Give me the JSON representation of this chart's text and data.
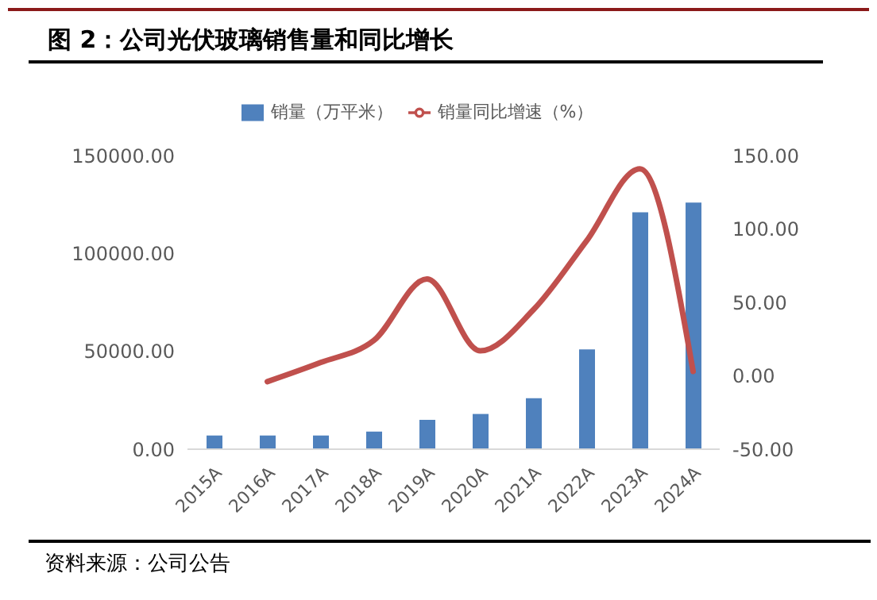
{
  "chart_data": {
    "type": "bar",
    "title": "图 2：公司光伏玻璃销售量和同比增长",
    "annotations": [
      "资料来源：公司公告"
    ],
    "categories": [
      "2015A",
      "2016A",
      "2017A",
      "2018A",
      "2019A",
      "2020A",
      "2021A",
      "2022A",
      "2023A",
      "2024A"
    ],
    "series": [
      {
        "name": "销量（万平米）",
        "color": "#4f81bd",
        "values": [
          7000,
          7000,
          7000,
          9000,
          15000,
          18000,
          26000,
          51000,
          121000,
          126000
        ]
      },
      {
        "name": "销量同比增速（%）",
        "type": "line",
        "axis": "y2",
        "color": "#c0504d",
        "values": [
          null,
          -4,
          9,
          24,
          66,
          17,
          45,
          92,
          141,
          3
        ]
      }
    ],
    "ylim": [
      0,
      150000
    ],
    "yticks": [
      {
        "value": 0,
        "label": "0.00"
      },
      {
        "value": 50000,
        "label": "50000.00"
      },
      {
        "value": 100000,
        "label": "100000.00"
      },
      {
        "value": 150000,
        "label": "150000.00"
      }
    ],
    "y2lim": [
      -50,
      150
    ],
    "y2ticks": [
      {
        "value": -50,
        "label": "-50.00"
      },
      {
        "value": 0,
        "label": "0.00"
      },
      {
        "value": 50,
        "label": "50.00"
      },
      {
        "value": 100,
        "label": "100.00"
      },
      {
        "value": 150,
        "label": "150.00"
      }
    ],
    "grid": false,
    "legend": "top",
    "marker": "none",
    "line_style": "solid"
  }
}
